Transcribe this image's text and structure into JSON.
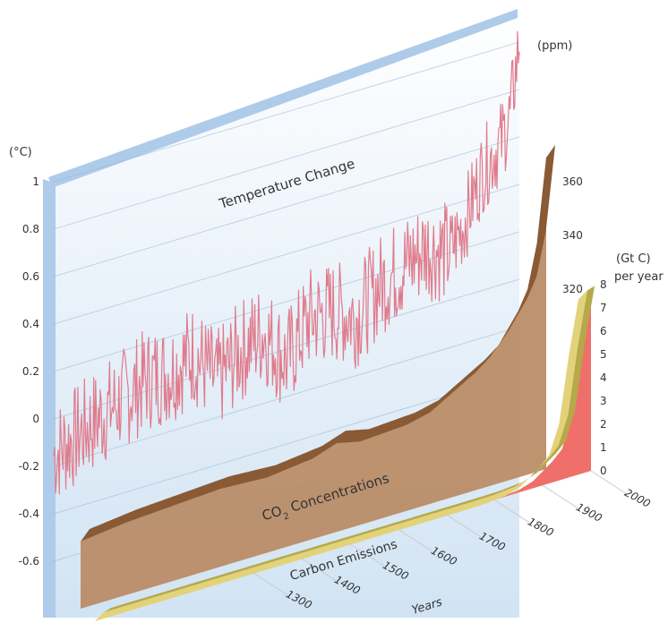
{
  "chart_data": [
    {
      "type": "line",
      "title": "Temperature Change",
      "ylabel": "(°C)",
      "ylim": [
        -0.6,
        1
      ],
      "yticks": [
        {
          "value": 1,
          "label": "1"
        },
        {
          "value": 0.8,
          "label": "0.8"
        },
        {
          "value": 0.6,
          "label": "0.6"
        },
        {
          "value": 0.4,
          "label": "0.4"
        },
        {
          "value": 0.2,
          "label": "0.2"
        },
        {
          "value": 0,
          "label": "0"
        },
        {
          "value": -0.2,
          "label": "-0.2"
        },
        {
          "value": -0.4,
          "label": "-0.4"
        },
        {
          "value": -0.6,
          "label": "-0.6"
        }
      ],
      "x": [
        1000,
        1050,
        1100,
        1150,
        1200,
        1250,
        1300,
        1350,
        1400,
        1450,
        1500,
        1550,
        1600,
        1650,
        1700,
        1750,
        1800,
        1850,
        1880,
        1900,
        1920,
        1940,
        1960,
        1980,
        2000
      ],
      "y": [
        -0.15,
        -0.1,
        -0.05,
        0.0,
        0.05,
        0.05,
        0.1,
        -0.05,
        0.05,
        0.1,
        -0.05,
        0.1,
        0.1,
        0.05,
        0.15,
        0.2,
        0.25,
        0.2,
        0.3,
        0.4,
        0.5,
        0.55,
        0.6,
        0.7,
        1.0
      ],
      "color": "#e07b8c"
    },
    {
      "type": "area",
      "title": "CO2 Concentrations",
      "ylabel": "(ppm)",
      "ylim": [
        280,
        370
      ],
      "yticks": [
        {
          "value": 360,
          "label": "360"
        },
        {
          "value": 340,
          "label": "340"
        },
        {
          "value": 320,
          "label": "320"
        }
      ],
      "x": [
        1000,
        1100,
        1200,
        1300,
        1400,
        1500,
        1550,
        1600,
        1700,
        1750,
        1800,
        1850,
        1880,
        1900,
        1920,
        1940,
        1960,
        1980,
        2000
      ],
      "y": [
        278,
        280,
        281,
        282,
        281,
        283,
        286,
        284,
        285,
        287,
        292,
        297,
        301,
        305,
        310,
        315,
        322,
        338,
        369
      ],
      "color": "#b88a63"
    },
    {
      "type": "area",
      "title": "Carbon Emissions",
      "ylabel": "(Gt C)",
      "ylabel2": "per year",
      "ylim": [
        0,
        8
      ],
      "yticks": [
        {
          "value": 8,
          "label": "8"
        },
        {
          "value": 7,
          "label": "7"
        },
        {
          "value": 6,
          "label": "6"
        },
        {
          "value": 5,
          "label": "5"
        },
        {
          "value": 4,
          "label": "4"
        },
        {
          "value": 3,
          "label": "3"
        },
        {
          "value": 2,
          "label": "2"
        },
        {
          "value": 1,
          "label": "1"
        },
        {
          "value": 0,
          "label": "0"
        }
      ],
      "x": [
        1000,
        1700,
        1750,
        1800,
        1850,
        1880,
        1900,
        1920,
        1940,
        1960,
        1980,
        2000
      ],
      "y": [
        0,
        0,
        0,
        0.01,
        0.1,
        0.3,
        0.6,
        0.9,
        1.3,
        2.5,
        5.3,
        7.6
      ],
      "color": "#e3d27a"
    }
  ],
  "x_axis": {
    "label": "Years",
    "ticks": [
      {
        "value": 1300,
        "label": "1300"
      },
      {
        "value": 1400,
        "label": "1400"
      },
      {
        "value": 1500,
        "label": "1500"
      },
      {
        "value": 1600,
        "label": "1600"
      },
      {
        "value": 1700,
        "label": "1700"
      },
      {
        "value": 1800,
        "label": "1800"
      },
      {
        "value": 1900,
        "label": "1900"
      },
      {
        "value": 2000,
        "label": "2000"
      }
    ]
  },
  "colors": {
    "temperature_panel": "#c9def2",
    "temperature_edge": "#aecbea",
    "temperature_line": "#e07b8c",
    "co2_face": "#b88a63",
    "co2_top": "#8a5a34",
    "emissions_top": "#b5a94a",
    "emissions_face": "#e3d27a",
    "emissions_red": "#ef6f6a",
    "text": "#333333"
  }
}
